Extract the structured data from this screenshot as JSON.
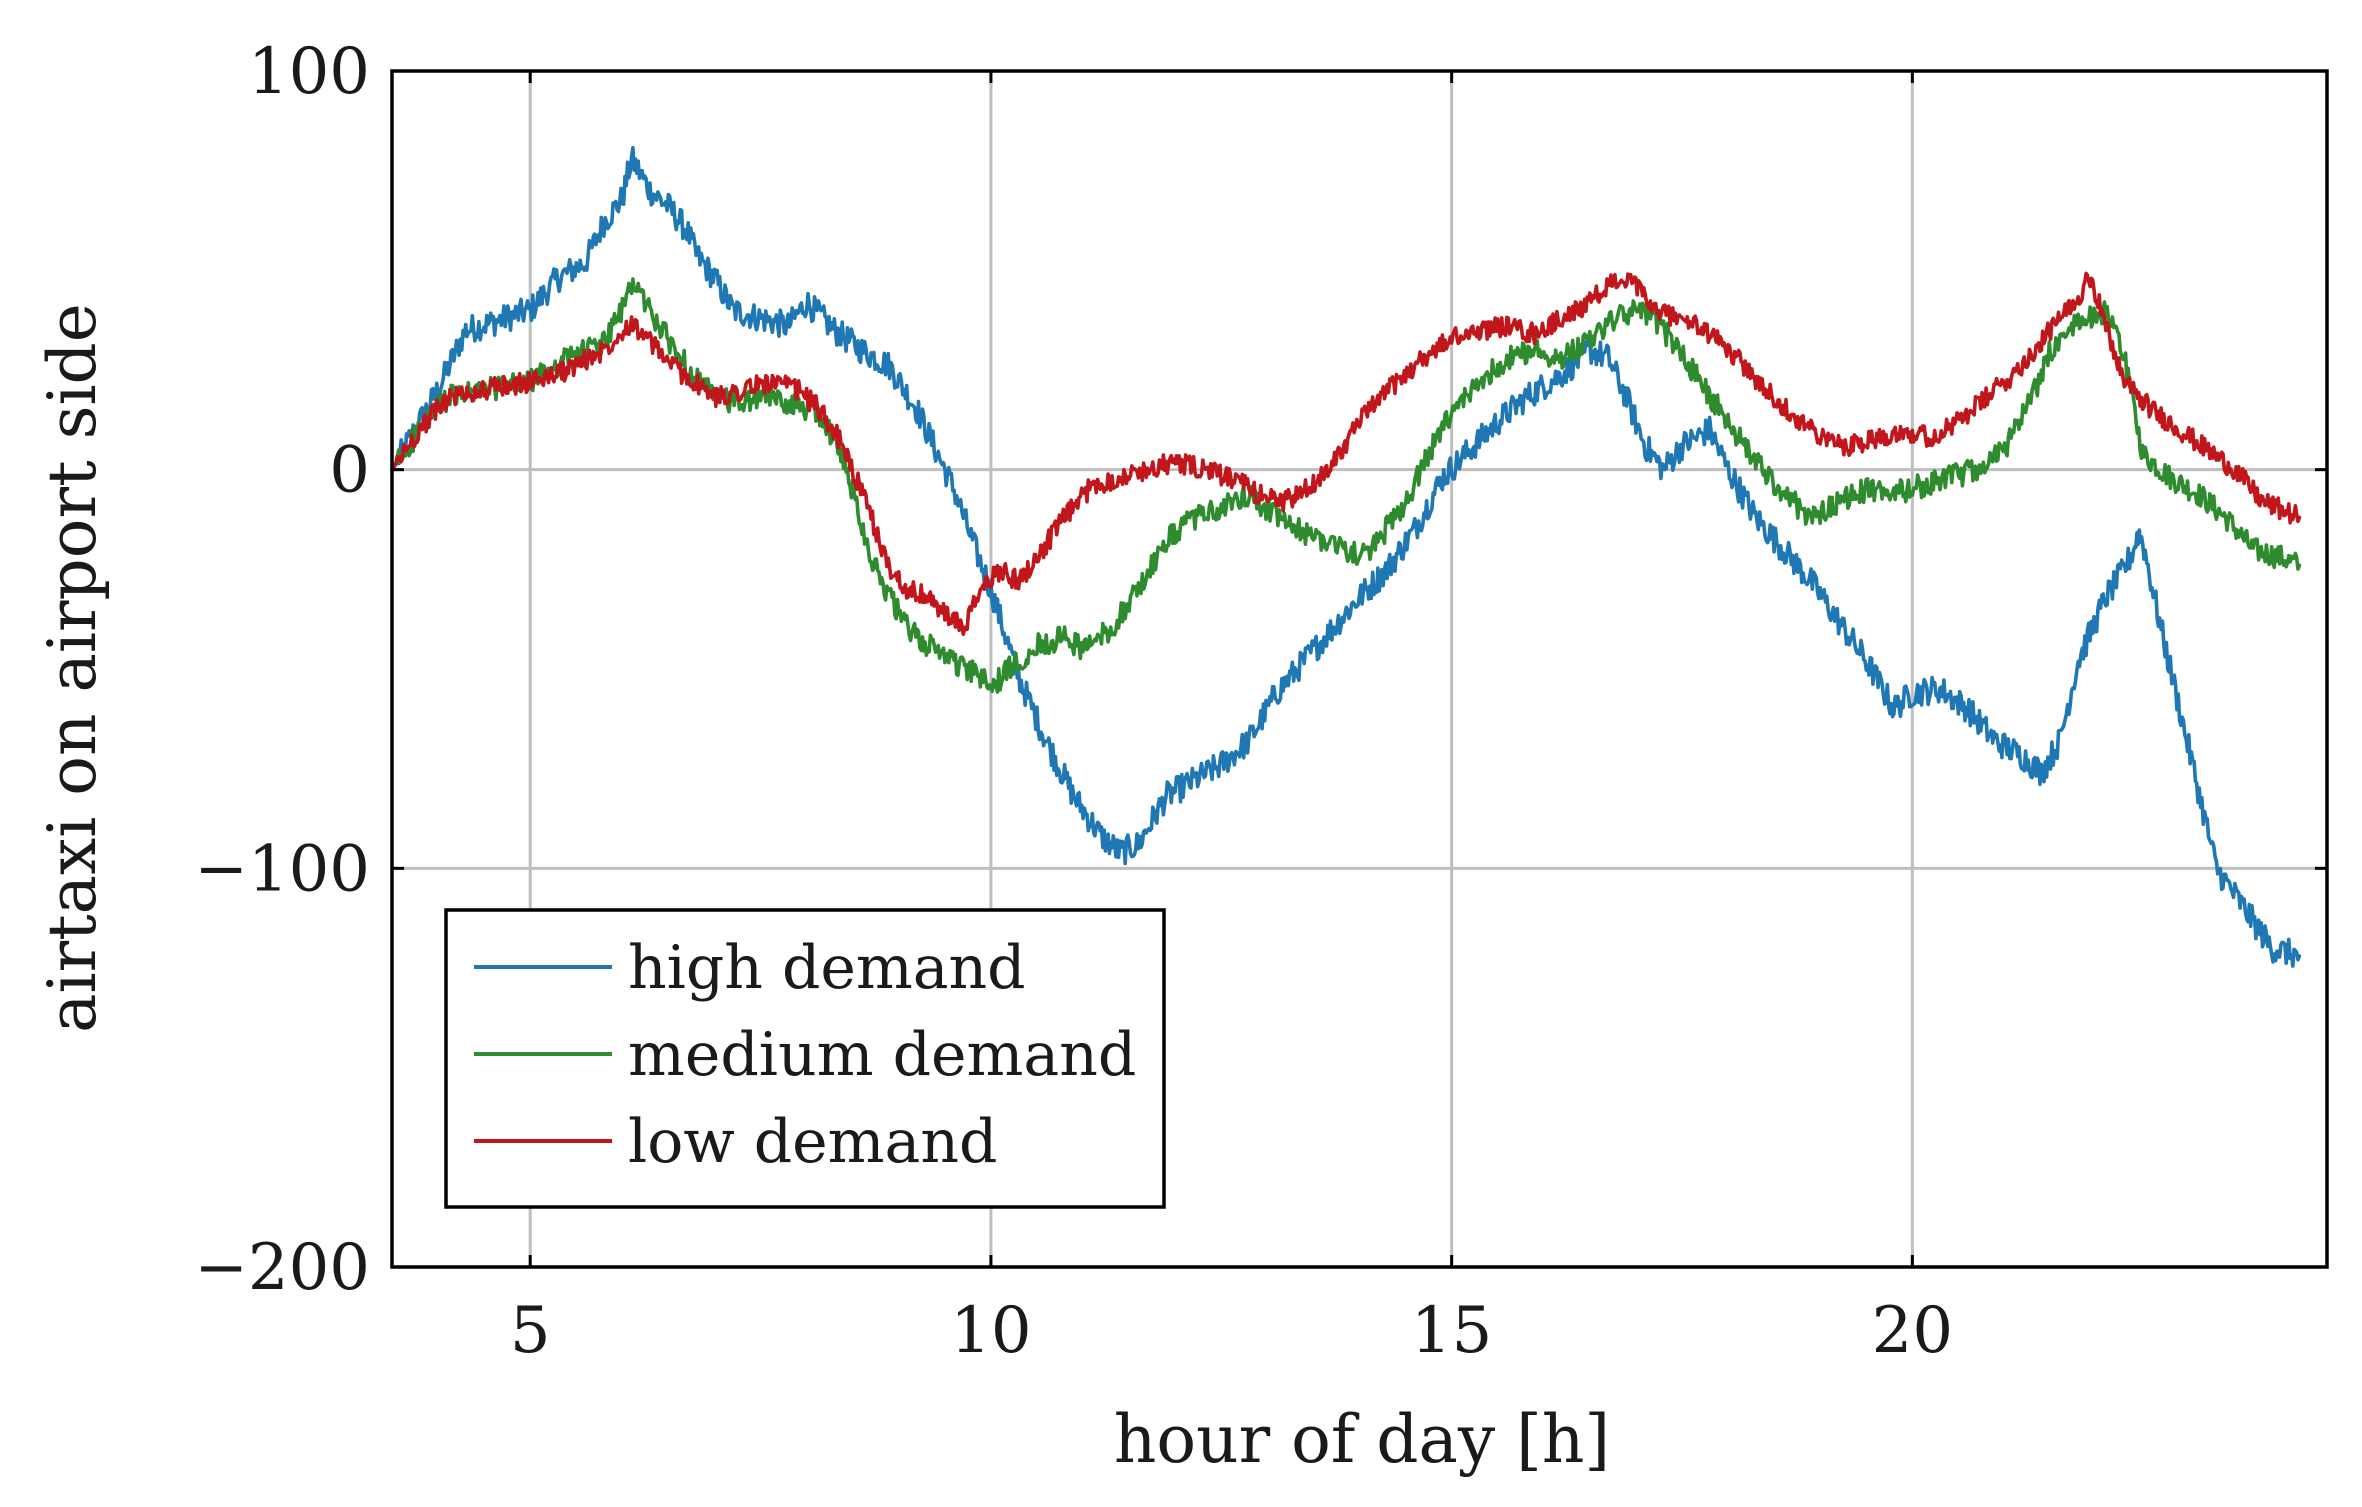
{
  "chart_data": {
    "type": "line",
    "title": "",
    "xlabel": "hour of day [h]",
    "ylabel": "airtaxi on airport side",
    "xlim": [
      3.5,
      24.5
    ],
    "ylim": [
      -200,
      100
    ],
    "xticks": [
      5,
      10,
      15,
      20
    ],
    "xtick_labels": [
      "5",
      "10",
      "15",
      "20"
    ],
    "yticks": [
      100,
      0,
      -100,
      -200
    ],
    "ytick_labels": [
      "100",
      "0",
      "−100",
      "−200"
    ],
    "grid": true,
    "legend_position": "bottom-left",
    "series": [
      {
        "name": "high demand",
        "color": "#1f77b4",
        "x": [
          3.5,
          3.7,
          4.0,
          4.3,
          4.6,
          5.0,
          5.3,
          5.6,
          5.8,
          6.0,
          6.1,
          6.2,
          6.3,
          6.5,
          6.7,
          6.8,
          7.0,
          7.2,
          7.5,
          7.8,
          8.0,
          8.3,
          8.6,
          8.9,
          9.2,
          9.4,
          9.6,
          9.8,
          10.0,
          10.3,
          10.6,
          10.9,
          11.2,
          11.4,
          11.6,
          11.9,
          12.2,
          12.5,
          12.8,
          13.1,
          13.4,
          13.7,
          14.0,
          14.3,
          14.6,
          14.9,
          15.2,
          15.5,
          15.8,
          16.2,
          16.5,
          16.7,
          16.9,
          17.1,
          17.3,
          17.5,
          17.8,
          18.0,
          18.3,
          18.6,
          18.9,
          19.2,
          19.5,
          19.8,
          20.0,
          20.3,
          20.6,
          20.9,
          21.2,
          21.4,
          21.6,
          21.8,
          22.1,
          22.3,
          22.4,
          22.45,
          22.5,
          22.7,
          22.9,
          23.1,
          23.3,
          23.6,
          23.9,
          24.2
        ],
        "y": [
          0,
          8,
          20,
          35,
          37,
          40,
          48,
          52,
          62,
          68,
          78,
          74,
          70,
          66,
          60,
          54,
          48,
          40,
          38,
          36,
          42,
          35,
          30,
          26,
          15,
          5,
          -5,
          -18,
          -30,
          -52,
          -68,
          -82,
          -92,
          -96,
          -94,
          -82,
          -78,
          -74,
          -68,
          -56,
          -48,
          -40,
          -32,
          -25,
          -15,
          -2,
          5,
          12,
          18,
          24,
          30,
          28,
          18,
          6,
          0,
          6,
          10,
          0,
          -12,
          -20,
          -28,
          -38,
          -48,
          -60,
          -56,
          -55,
          -60,
          -68,
          -72,
          -76,
          -68,
          -48,
          -32,
          -25,
          -20,
          -16,
          -18,
          -40,
          -60,
          -80,
          -100,
          -110,
          -120,
          -122
        ]
      },
      {
        "name": "medium demand",
        "color": "#2e8b2e",
        "x": [
          3.5,
          3.8,
          4.1,
          4.5,
          5.0,
          5.4,
          5.8,
          6.0,
          6.1,
          6.2,
          6.4,
          6.7,
          7.0,
          7.3,
          7.6,
          7.9,
          8.1,
          8.3,
          8.5,
          8.7,
          8.9,
          9.1,
          9.3,
          9.5,
          9.7,
          9.9,
          10.0,
          10.2,
          10.5,
          10.8,
          11.0,
          11.3,
          11.6,
          11.9,
          12.2,
          12.5,
          12.8,
          13.1,
          13.4,
          13.7,
          14.0,
          14.2,
          14.5,
          14.8,
          15.0,
          15.3,
          15.6,
          15.9,
          16.2,
          16.5,
          16.8,
          17.0,
          17.2,
          17.4,
          17.7,
          18.0,
          18.3,
          18.6,
          18.9,
          19.2,
          19.5,
          19.8,
          20.1,
          20.4,
          20.7,
          21.0,
          21.3,
          21.5,
          21.7,
          21.9,
          22.1,
          22.3,
          22.5,
          22.8,
          23.1,
          23.4,
          23.7,
          24.0,
          24.2
        ],
        "y": [
          0,
          10,
          18,
          20,
          22,
          28,
          32,
          40,
          47,
          44,
          36,
          26,
          18,
          17,
          18,
          16,
          15,
          8,
          -5,
          -22,
          -32,
          -40,
          -44,
          -46,
          -50,
          -52,
          -55,
          -50,
          -44,
          -42,
          -45,
          -40,
          -30,
          -18,
          -12,
          -10,
          -6,
          -12,
          -16,
          -18,
          -22,
          -18,
          -8,
          6,
          14,
          22,
          28,
          30,
          28,
          33,
          38,
          40,
          38,
          32,
          22,
          12,
          2,
          -6,
          -12,
          -8,
          -5,
          -6,
          -4,
          -2,
          0,
          5,
          18,
          30,
          35,
          38,
          40,
          28,
          4,
          -2,
          -6,
          -12,
          -20,
          -22,
          -24
        ]
      },
      {
        "name": "low demand",
        "color": "#c0161c",
        "x": [
          3.5,
          3.8,
          4.1,
          4.5,
          5.0,
          5.4,
          5.8,
          6.0,
          6.1,
          6.3,
          6.6,
          7.0,
          7.3,
          7.6,
          7.9,
          8.1,
          8.3,
          8.5,
          8.7,
          8.9,
          9.1,
          9.3,
          9.5,
          9.7,
          9.9,
          10.1,
          10.3,
          10.5,
          10.8,
          11.1,
          11.4,
          11.7,
          12.0,
          12.3,
          12.6,
          12.9,
          13.2,
          13.5,
          13.8,
          14.1,
          14.4,
          14.7,
          15.0,
          15.3,
          15.6,
          15.9,
          16.2,
          16.5,
          16.8,
          17.0,
          17.2,
          17.5,
          17.8,
          18.1,
          18.4,
          18.7,
          19.0,
          19.3,
          19.6,
          19.9,
          20.2,
          20.5,
          20.8,
          21.1,
          21.4,
          21.6,
          21.8,
          21.9,
          22.0,
          22.1,
          22.3,
          22.6,
          22.9,
          23.2,
          23.5,
          23.8,
          24.1,
          24.2
        ],
        "y": [
          0,
          10,
          18,
          20,
          22,
          25,
          30,
          35,
          37,
          32,
          25,
          18,
          20,
          22,
          20,
          16,
          10,
          0,
          -12,
          -25,
          -30,
          -32,
          -36,
          -40,
          -30,
          -25,
          -28,
          -22,
          -12,
          -4,
          -2,
          0,
          2,
          0,
          -2,
          -6,
          -8,
          -4,
          5,
          15,
          22,
          28,
          33,
          35,
          36,
          34,
          38,
          42,
          48,
          46,
          40,
          38,
          34,
          28,
          20,
          14,
          8,
          6,
          8,
          10,
          8,
          12,
          18,
          24,
          32,
          38,
          42,
          50,
          44,
          36,
          22,
          15,
          10,
          5,
          0,
          -8,
          -11,
          -12
        ]
      }
    ]
  }
}
